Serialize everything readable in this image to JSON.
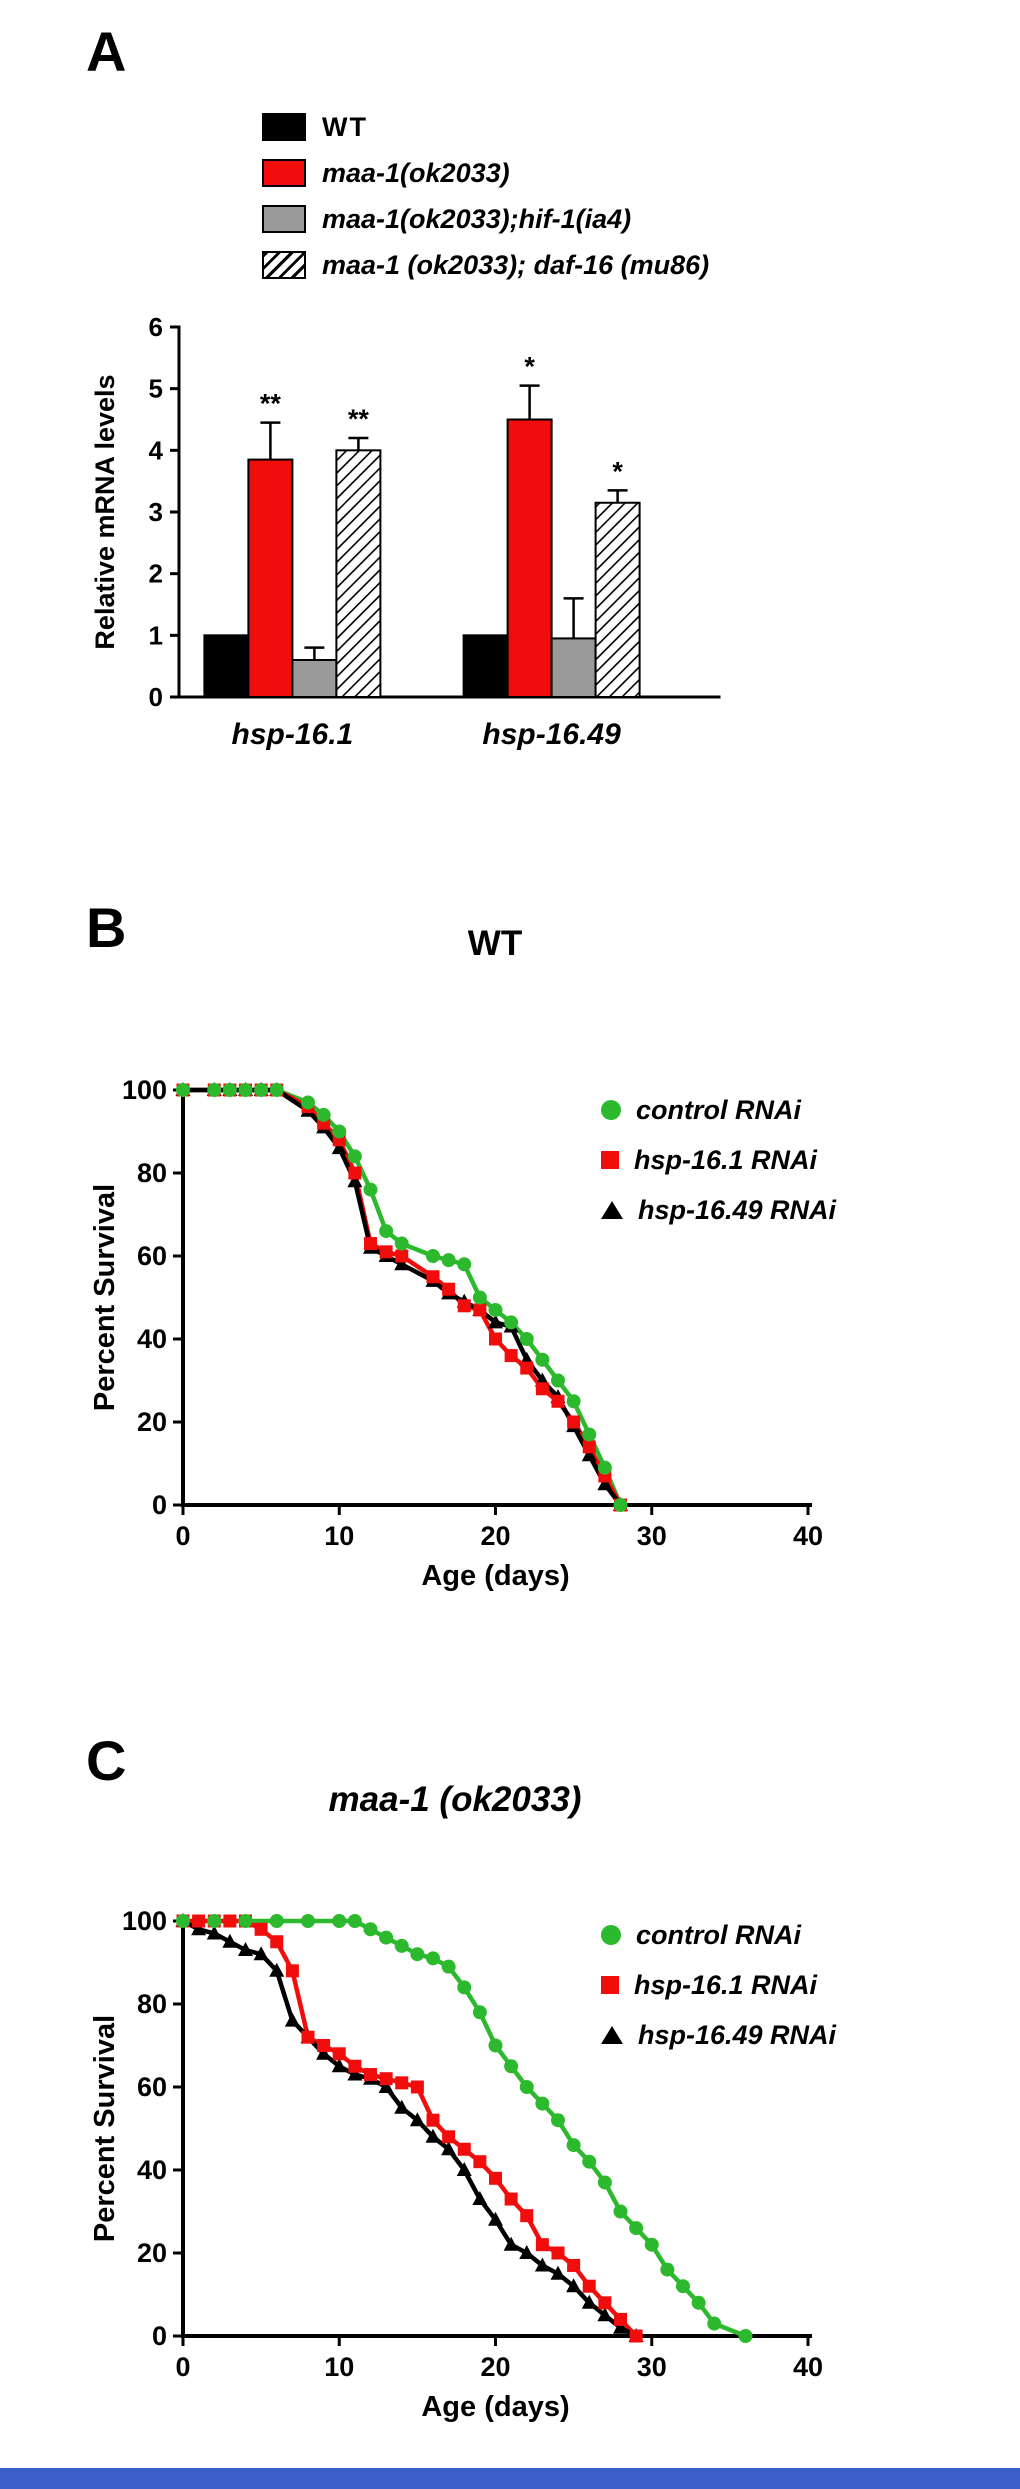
{
  "figure": {
    "background": "#ffffff",
    "bottom_bar_color": "#3a5fc8"
  },
  "chart_data": [
    {
      "panel_label": "A",
      "type": "bar",
      "title": "",
      "xlabel": "",
      "ylabel": "Relative mRNA levels",
      "ylim": [
        0,
        6
      ],
      "yticks": [
        0,
        1,
        2,
        3,
        4,
        5,
        6
      ],
      "categories": [
        "hsp-16.1",
        "hsp-16.49"
      ],
      "legend_position": "top-left",
      "grid": false,
      "series": [
        {
          "name": "WT",
          "color": "#000000",
          "pattern": "solid",
          "values": [
            1.0,
            1.0
          ],
          "errors": [
            0,
            0
          ],
          "sig": [
            "",
            ""
          ]
        },
        {
          "name": "maa-1(ok2033)",
          "color": "#f20d0d",
          "pattern": "solid",
          "values": [
            3.85,
            4.5
          ],
          "errors": [
            0.6,
            0.55
          ],
          "sig": [
            "**",
            "*"
          ]
        },
        {
          "name": "maa-1(ok2033);hif-1(ia4)",
          "color": "#9a9a9a",
          "pattern": "solid",
          "values": [
            0.6,
            0.95
          ],
          "errors": [
            0.2,
            0.65
          ],
          "sig": [
            "",
            ""
          ]
        },
        {
          "name": "maa-1 (ok2033); daf-16 (mu86)",
          "color": "#ffffff",
          "pattern": "hatch",
          "values": [
            4.0,
            3.15
          ],
          "errors": [
            0.2,
            0.2
          ],
          "sig": [
            "**",
            "*"
          ]
        }
      ]
    },
    {
      "panel_label": "B",
      "type": "line",
      "title": "WT",
      "xlabel": "Age (days)",
      "ylabel": "Percent Survival",
      "xlim": [
        0,
        40
      ],
      "ylim": [
        0,
        100
      ],
      "xticks": [
        0,
        10,
        20,
        30,
        40
      ],
      "yticks": [
        0,
        20,
        40,
        60,
        80,
        100
      ],
      "legend_position": "right",
      "grid": false,
      "series": [
        {
          "name": "control RNAi",
          "color": "#2db92d",
          "marker": "circle",
          "x": [
            0,
            2,
            3,
            4,
            5,
            6,
            8,
            9,
            10,
            11,
            12,
            13,
            14,
            16,
            17,
            18,
            19,
            20,
            21,
            22,
            23,
            24,
            25,
            26,
            27,
            28
          ],
          "y": [
            100,
            100,
            100,
            100,
            100,
            100,
            97,
            94,
            90,
            84,
            76,
            66,
            63,
            60,
            59,
            58,
            50,
            47,
            44,
            40,
            35,
            30,
            25,
            17,
            9,
            0
          ]
        },
        {
          "name": "hsp-16.1 RNAi",
          "color": "#f20d0d",
          "marker": "square",
          "x": [
            0,
            2,
            3,
            4,
            5,
            6,
            8,
            9,
            10,
            11,
            12,
            13,
            14,
            16,
            17,
            18,
            19,
            20,
            21,
            22,
            23,
            24,
            25,
            26,
            27,
            28
          ],
          "y": [
            100,
            100,
            100,
            100,
            100,
            100,
            96,
            92,
            88,
            80,
            63,
            61,
            60,
            55,
            52,
            48,
            47,
            40,
            36,
            33,
            28,
            25,
            20,
            14,
            7,
            0
          ]
        },
        {
          "name": "hsp-16.49 RNAi",
          "color": "#000000",
          "marker": "triangle",
          "x": [
            0,
            2,
            3,
            4,
            5,
            6,
            8,
            9,
            10,
            11,
            12,
            13,
            14,
            16,
            17,
            18,
            19,
            20,
            21,
            22,
            23,
            24,
            25,
            26,
            27,
            28
          ],
          "y": [
            100,
            100,
            100,
            100,
            100,
            100,
            95,
            91,
            86,
            78,
            62,
            60,
            58,
            54,
            51,
            49,
            47,
            44,
            43,
            35,
            30,
            26,
            19,
            12,
            5,
            0
          ]
        }
      ]
    },
    {
      "panel_label": "C",
      "type": "line",
      "title": "maa-1 (ok2033)",
      "xlabel": "Age (days)",
      "ylabel": "Percent Survival",
      "xlim": [
        0,
        40
      ],
      "ylim": [
        0,
        100
      ],
      "xticks": [
        0,
        10,
        20,
        30,
        40
      ],
      "yticks": [
        0,
        20,
        40,
        60,
        80,
        100
      ],
      "legend_position": "right",
      "grid": false,
      "series": [
        {
          "name": "control RNAi",
          "color": "#2db92d",
          "marker": "circle",
          "x": [
            0,
            2,
            4,
            6,
            8,
            10,
            11,
            12,
            13,
            14,
            15,
            16,
            17,
            18,
            19,
            20,
            21,
            22,
            23,
            24,
            25,
            26,
            27,
            28,
            29,
            30,
            31,
            32,
            33,
            34,
            36
          ],
          "y": [
            100,
            100,
            100,
            100,
            100,
            100,
            100,
            98,
            96,
            94,
            92,
            91,
            89,
            84,
            78,
            70,
            65,
            60,
            56,
            52,
            46,
            42,
            37,
            30,
            26,
            22,
            16,
            12,
            8,
            3,
            0
          ]
        },
        {
          "name": "hsp-16.1 RNAi",
          "color": "#f20d0d",
          "marker": "square",
          "x": [
            0,
            1,
            2,
            3,
            4,
            5,
            6,
            7,
            8,
            9,
            10,
            11,
            12,
            13,
            14,
            15,
            16,
            17,
            18,
            19,
            20,
            21,
            22,
            23,
            24,
            25,
            26,
            27,
            28,
            29
          ],
          "y": [
            100,
            100,
            100,
            100,
            100,
            98,
            95,
            88,
            72,
            70,
            68,
            65,
            63,
            62,
            61,
            60,
            52,
            48,
            45,
            42,
            38,
            33,
            29,
            22,
            20,
            17,
            12,
            8,
            4,
            0
          ]
        },
        {
          "name": "hsp-16.49 RNAi",
          "color": "#000000",
          "marker": "triangle",
          "x": [
            0,
            1,
            2,
            3,
            4,
            5,
            6,
            7,
            8,
            9,
            10,
            11,
            12,
            13,
            14,
            15,
            16,
            17,
            18,
            19,
            20,
            21,
            22,
            23,
            24,
            25,
            26,
            27,
            28,
            29
          ],
          "y": [
            100,
            98,
            97,
            95,
            93,
            92,
            88,
            76,
            72,
            68,
            65,
            63,
            62,
            60,
            55,
            52,
            48,
            45,
            40,
            33,
            28,
            22,
            20,
            17,
            15,
            12,
            8,
            5,
            2,
            0
          ]
        }
      ]
    }
  ]
}
